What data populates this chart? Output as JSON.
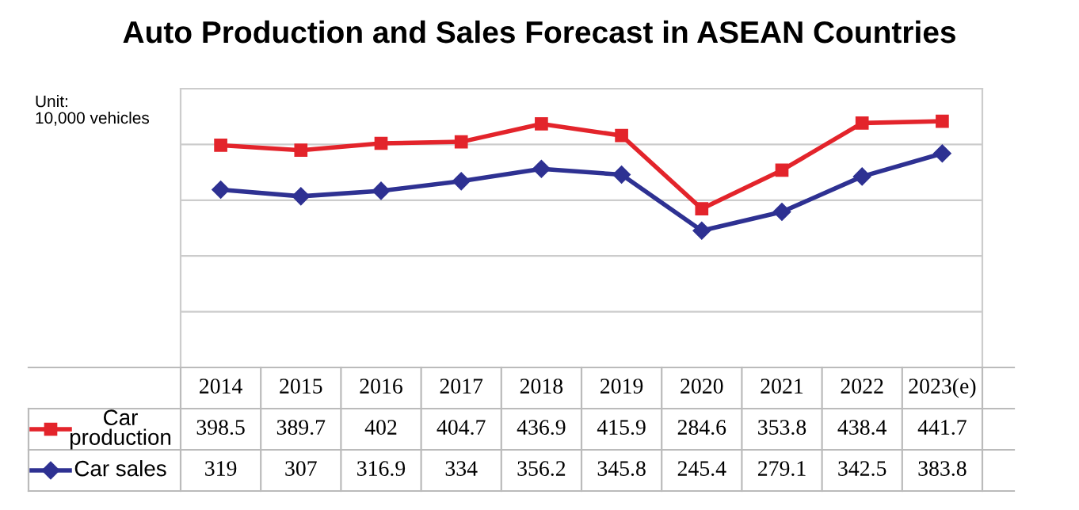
{
  "chart_data": {
    "type": "line",
    "title": "Auto Production and Sales Forecast in ASEAN Countries",
    "annotations": [
      "Unit:\n10,000 vehicles"
    ],
    "categories": [
      "2014",
      "2015",
      "2016",
      "2017",
      "2018",
      "2019",
      "2020",
      "2021",
      "2022",
      "2023(e)"
    ],
    "series": [
      {
        "name": "Car\nproduction",
        "color": "#e3242b",
        "marker": "square",
        "values": [
          398.5,
          389.7,
          402,
          404.7,
          436.9,
          415.9,
          284.6,
          353.8,
          438.4,
          441.7
        ]
      },
      {
        "name": "Car sales",
        "color": "#2e3192",
        "marker": "diamond",
        "values": [
          319,
          307,
          316.9,
          334,
          356.2,
          345.8,
          245.4,
          279.1,
          342.5,
          383.8
        ]
      }
    ],
    "ylim": [
      0,
      500
    ],
    "yticks": [
      {
        "value": 0,
        "label": null
      },
      {
        "value": 100,
        "label": null
      },
      {
        "value": 200,
        "label": null
      },
      {
        "value": 300,
        "label": null
      },
      {
        "value": 400,
        "label": null
      },
      {
        "value": 500,
        "label": null
      }
    ],
    "grid": "y",
    "data_labels": true,
    "legend": "bottom left",
    "line_style": "solid"
  }
}
